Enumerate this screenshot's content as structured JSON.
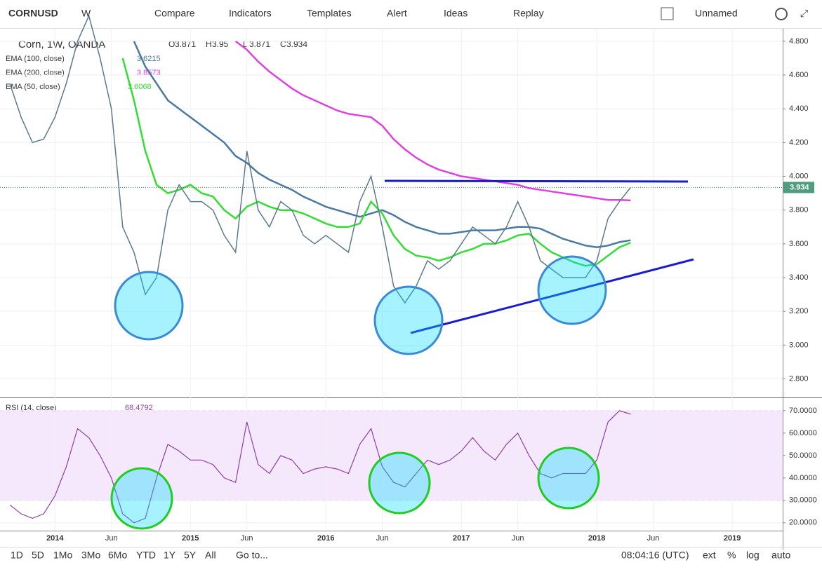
{
  "toolbar": {
    "symbol": "CORNUSD",
    "interval": "W",
    "items": [
      "Compare",
      "Indicators",
      "Templates",
      "Alert",
      "Ideas",
      "Replay"
    ],
    "layout_name": "Unnamed"
  },
  "bottom_bar": {
    "ranges": [
      "1D",
      "5D",
      "1Mo",
      "3Mo",
      "6Mo",
      "YTD",
      "1Y",
      "5Y",
      "All"
    ],
    "goto": "Go to...",
    "clock": "08:04:16 (UTC)",
    "options": [
      "ext",
      "%",
      "log",
      "auto"
    ]
  },
  "chart_data": [
    {
      "type": "line",
      "title": "Corn, 1W, OANDA",
      "ohlc": [
        {
          "label": "O",
          "value": 3.871
        },
        {
          "label": "H",
          "value": 3.95
        },
        {
          "label": "L",
          "value": 3.871
        },
        {
          "label": "C",
          "value": 3.934
        }
      ],
      "categories": [
        null,
        null,
        null,
        null,
        "2014",
        null,
        null,
        null,
        null,
        "Jun",
        null,
        null,
        null,
        null,
        null,
        null,
        "2015",
        null,
        null,
        null,
        null,
        "Jun",
        null,
        null,
        null,
        null,
        null,
        null,
        "2016",
        null,
        null,
        null,
        null,
        "Jun",
        null,
        null,
        null,
        null,
        null,
        null,
        "2017",
        null,
        null,
        null,
        null,
        "Jun",
        null,
        null,
        null,
        null,
        null,
        null,
        "2018",
        null,
        null,
        null,
        null,
        "Jun",
        null,
        null,
        null,
        null,
        null,
        null,
        "2019",
        null,
        null
      ],
      "values": [
        4.55,
        4.35,
        4.2,
        4.22,
        4.35,
        4.55,
        4.8,
        4.95,
        4.7,
        4.4,
        3.7,
        3.55,
        3.3,
        3.4,
        3.8,
        3.95,
        3.85,
        3.85,
        3.8,
        3.65,
        3.55,
        4.15,
        3.8,
        3.7,
        3.85,
        3.8,
        3.65,
        3.6,
        3.65,
        3.6,
        3.55,
        3.85,
        4.0,
        3.7,
        3.35,
        3.25,
        3.35,
        3.5,
        3.45,
        3.5,
        3.6,
        3.7,
        3.65,
        3.6,
        3.7,
        3.85,
        3.7,
        3.5,
        3.45,
        3.4,
        3.4,
        3.4,
        3.5,
        3.75,
        3.85,
        3.934,
        null,
        null,
        null,
        null,
        null,
        null,
        null,
        null,
        null,
        null,
        null
      ],
      "color": "#5b7a8c",
      "series": [
        {
          "name": "EMA (100, close)",
          "color": "#4a7aa0",
          "values": [
            null,
            null,
            null,
            null,
            null,
            null,
            null,
            null,
            null,
            null,
            null,
            4.8,
            4.65,
            4.55,
            4.45,
            4.4,
            4.35,
            4.3,
            4.25,
            4.2,
            4.12,
            4.08,
            4.02,
            3.98,
            3.95,
            3.92,
            3.88,
            3.85,
            3.82,
            3.8,
            3.78,
            3.76,
            3.78,
            3.8,
            3.77,
            3.73,
            3.7,
            3.68,
            3.66,
            3.66,
            3.67,
            3.68,
            3.68,
            3.68,
            3.69,
            3.7,
            3.7,
            3.69,
            3.66,
            3.63,
            3.61,
            3.59,
            3.58,
            3.59,
            3.61,
            3.6215,
            null,
            null,
            null,
            null,
            null,
            null,
            null,
            null,
            null,
            null,
            null
          ]
        },
        {
          "name": "EMA (200, close)",
          "color": "#e040e0",
          "values": [
            null,
            null,
            null,
            null,
            null,
            null,
            null,
            null,
            null,
            null,
            null,
            null,
            null,
            null,
            null,
            null,
            null,
            null,
            null,
            null,
            4.8,
            4.75,
            4.68,
            4.62,
            4.57,
            4.52,
            4.48,
            4.45,
            4.42,
            4.39,
            4.37,
            4.36,
            4.35,
            4.3,
            4.22,
            4.16,
            4.11,
            4.07,
            4.04,
            4.02,
            4.0,
            3.99,
            3.98,
            3.97,
            3.96,
            3.95,
            3.93,
            3.92,
            3.91,
            3.9,
            3.89,
            3.88,
            3.87,
            3.86,
            3.86,
            3.8573,
            null,
            null,
            null,
            null,
            null,
            null,
            null,
            null,
            null,
            null,
            null
          ]
        },
        {
          "name": "EMA (50, close)",
          "color": "#33dd33",
          "values": [
            null,
            null,
            null,
            null,
            null,
            null,
            null,
            null,
            null,
            null,
            4.7,
            4.45,
            4.15,
            3.95,
            3.9,
            3.92,
            3.95,
            3.9,
            3.88,
            3.8,
            3.75,
            3.82,
            3.85,
            3.82,
            3.8,
            3.8,
            3.78,
            3.75,
            3.72,
            3.7,
            3.7,
            3.72,
            3.85,
            3.78,
            3.65,
            3.57,
            3.53,
            3.52,
            3.5,
            3.52,
            3.55,
            3.57,
            3.6,
            3.6,
            3.62,
            3.65,
            3.66,
            3.6,
            3.55,
            3.52,
            3.49,
            3.47,
            3.48,
            3.53,
            3.58,
            3.6068,
            null,
            null,
            null,
            null,
            null,
            null,
            null,
            null,
            null,
            null,
            null
          ]
        }
      ],
      "ylim": [
        2.69,
        4.87
      ],
      "yticks": [
        {
          "value": 2.8,
          "label": "2.800"
        },
        {
          "value": 3,
          "label": "3.000"
        },
        {
          "value": 3.2,
          "label": "3.200"
        },
        {
          "value": 3.4,
          "label": "3.400"
        },
        {
          "value": 3.6,
          "label": "3.600"
        },
        {
          "value": 3.8,
          "label": "3.800"
        },
        {
          "value": 4,
          "label": "4.000"
        },
        {
          "value": 4.2,
          "label": "4.200"
        },
        {
          "value": 4.4,
          "label": "4.400"
        },
        {
          "value": 4.6,
          "label": "4.600"
        },
        {
          "value": 4.8,
          "label": "4.800"
        }
      ]
    },
    {
      "type": "line",
      "title": "RSI (14, close)",
      "color": "#8e3fa8",
      "values": [
        28,
        24,
        22,
        24,
        32,
        45,
        62,
        58,
        50,
        40,
        24,
        20,
        22,
        40,
        55,
        52,
        48,
        48,
        46,
        40,
        38,
        65,
        46,
        42,
        50,
        48,
        42,
        44,
        45,
        44,
        42,
        55,
        62,
        45,
        38,
        36,
        42,
        48,
        46,
        48,
        52,
        58,
        52,
        48,
        55,
        60,
        50,
        42,
        40,
        42,
        42,
        42,
        48,
        65,
        70,
        68.4792,
        null,
        null,
        null,
        null,
        null,
        null,
        null,
        null,
        null,
        null,
        null
      ],
      "band": [
        30,
        70
      ],
      "ylim": [
        16.5,
        75.6
      ],
      "yticks": [
        {
          "value": 20,
          "label": "20.0000"
        },
        {
          "value": 30,
          "label": "30.0000"
        },
        {
          "value": 40,
          "label": "40.0000"
        },
        {
          "value": 50,
          "label": "50.0000"
        },
        {
          "value": 60,
          "label": "60.0000"
        },
        {
          "value": 70,
          "label": "70.0000"
        }
      ]
    }
  ]
}
